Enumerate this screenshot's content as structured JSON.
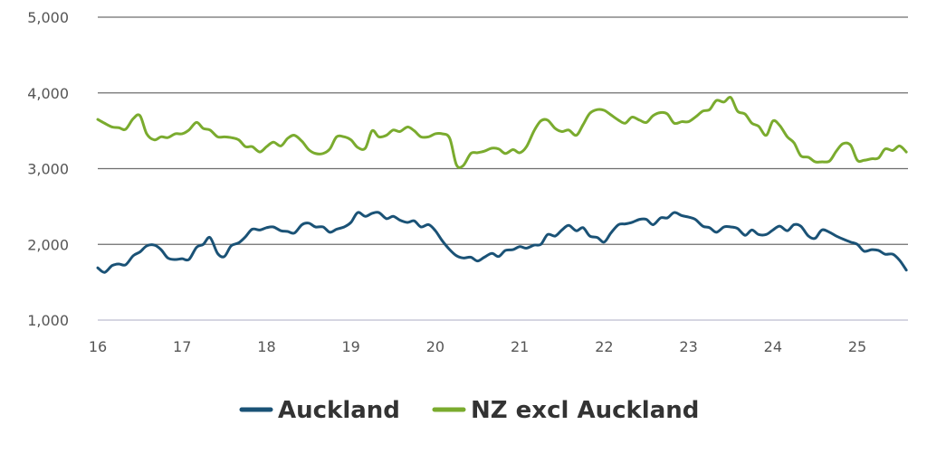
{
  "chart_data": {
    "type": "line",
    "title": "",
    "xlabel": "",
    "ylabel": "",
    "xlim": [
      16,
      25.6
    ],
    "ylim": [
      1000,
      5000
    ],
    "x_ticks": [
      "16",
      "17",
      "18",
      "19",
      "20",
      "21",
      "22",
      "23",
      "24",
      "25"
    ],
    "y_ticks": [
      "1,000",
      "2,000",
      "3,000",
      "4,000",
      "5,000"
    ],
    "grid": "horizontal",
    "legend_position": "bottom",
    "series": [
      {
        "name": "Auckland",
        "color": "#1a5276",
        "points": [
          [
            16.0,
            1690
          ],
          [
            16.08,
            1630
          ],
          [
            16.17,
            1720
          ],
          [
            16.25,
            1740
          ],
          [
            16.33,
            1730
          ],
          [
            16.42,
            1850
          ],
          [
            16.5,
            1900
          ],
          [
            16.58,
            1980
          ],
          [
            16.67,
            1990
          ],
          [
            16.75,
            1930
          ],
          [
            16.83,
            1820
          ],
          [
            16.92,
            1800
          ],
          [
            17.0,
            1810
          ],
          [
            17.08,
            1800
          ],
          [
            17.17,
            1960
          ],
          [
            17.25,
            2000
          ],
          [
            17.33,
            2090
          ],
          [
            17.42,
            1880
          ],
          [
            17.5,
            1840
          ],
          [
            17.58,
            1980
          ],
          [
            17.67,
            2020
          ],
          [
            17.75,
            2100
          ],
          [
            17.83,
            2200
          ],
          [
            17.92,
            2190
          ],
          [
            18.0,
            2220
          ],
          [
            18.08,
            2230
          ],
          [
            18.17,
            2180
          ],
          [
            18.25,
            2170
          ],
          [
            18.33,
            2150
          ],
          [
            18.42,
            2260
          ],
          [
            18.5,
            2280
          ],
          [
            18.58,
            2230
          ],
          [
            18.67,
            2230
          ],
          [
            18.75,
            2160
          ],
          [
            18.83,
            2200
          ],
          [
            18.92,
            2230
          ],
          [
            19.0,
            2290
          ],
          [
            19.08,
            2420
          ],
          [
            19.17,
            2370
          ],
          [
            19.25,
            2410
          ],
          [
            19.33,
            2420
          ],
          [
            19.42,
            2340
          ],
          [
            19.5,
            2370
          ],
          [
            19.58,
            2320
          ],
          [
            19.67,
            2290
          ],
          [
            19.75,
            2310
          ],
          [
            19.83,
            2230
          ],
          [
            19.92,
            2260
          ],
          [
            20.0,
            2180
          ],
          [
            20.08,
            2050
          ],
          [
            20.17,
            1930
          ],
          [
            20.25,
            1850
          ],
          [
            20.33,
            1820
          ],
          [
            20.42,
            1830
          ],
          [
            20.5,
            1780
          ],
          [
            20.58,
            1830
          ],
          [
            20.67,
            1880
          ],
          [
            20.75,
            1840
          ],
          [
            20.83,
            1920
          ],
          [
            20.92,
            1930
          ],
          [
            21.0,
            1970
          ],
          [
            21.08,
            1950
          ],
          [
            21.17,
            1990
          ],
          [
            21.25,
            2000
          ],
          [
            21.33,
            2130
          ],
          [
            21.42,
            2110
          ],
          [
            21.5,
            2190
          ],
          [
            21.58,
            2250
          ],
          [
            21.67,
            2180
          ],
          [
            21.75,
            2220
          ],
          [
            21.83,
            2110
          ],
          [
            21.92,
            2090
          ],
          [
            22.0,
            2030
          ],
          [
            22.08,
            2150
          ],
          [
            22.17,
            2260
          ],
          [
            22.25,
            2270
          ],
          [
            22.33,
            2290
          ],
          [
            22.42,
            2330
          ],
          [
            22.5,
            2330
          ],
          [
            22.58,
            2260
          ],
          [
            22.67,
            2350
          ],
          [
            22.75,
            2350
          ],
          [
            22.83,
            2420
          ],
          [
            22.92,
            2380
          ],
          [
            23.0,
            2360
          ],
          [
            23.08,
            2330
          ],
          [
            23.17,
            2240
          ],
          [
            23.25,
            2220
          ],
          [
            23.33,
            2160
          ],
          [
            23.42,
            2230
          ],
          [
            23.5,
            2230
          ],
          [
            23.58,
            2210
          ],
          [
            23.67,
            2120
          ],
          [
            23.75,
            2190
          ],
          [
            23.83,
            2130
          ],
          [
            23.92,
            2130
          ],
          [
            24.0,
            2190
          ],
          [
            24.08,
            2240
          ],
          [
            24.17,
            2180
          ],
          [
            24.25,
            2260
          ],
          [
            24.33,
            2240
          ],
          [
            24.42,
            2110
          ],
          [
            24.5,
            2080
          ],
          [
            24.58,
            2190
          ],
          [
            24.67,
            2160
          ],
          [
            24.75,
            2110
          ],
          [
            24.83,
            2070
          ],
          [
            24.92,
            2030
          ],
          [
            25.0,
            2000
          ],
          [
            25.08,
            1910
          ],
          [
            25.17,
            1930
          ],
          [
            25.25,
            1920
          ],
          [
            25.33,
            1870
          ],
          [
            25.42,
            1870
          ],
          [
            25.5,
            1790
          ],
          [
            25.58,
            1660
          ]
        ]
      },
      {
        "name": "NZ excl Auckland",
        "color": "#7aab2e",
        "points": [
          [
            16.0,
            3650
          ],
          [
            16.08,
            3600
          ],
          [
            16.17,
            3550
          ],
          [
            16.25,
            3540
          ],
          [
            16.33,
            3520
          ],
          [
            16.42,
            3660
          ],
          [
            16.5,
            3700
          ],
          [
            16.58,
            3460
          ],
          [
            16.67,
            3380
          ],
          [
            16.75,
            3420
          ],
          [
            16.83,
            3410
          ],
          [
            16.92,
            3460
          ],
          [
            17.0,
            3460
          ],
          [
            17.08,
            3510
          ],
          [
            17.17,
            3610
          ],
          [
            17.25,
            3530
          ],
          [
            17.33,
            3510
          ],
          [
            17.42,
            3420
          ],
          [
            17.5,
            3420
          ],
          [
            17.58,
            3410
          ],
          [
            17.67,
            3380
          ],
          [
            17.75,
            3290
          ],
          [
            17.83,
            3290
          ],
          [
            17.92,
            3220
          ],
          [
            18.0,
            3290
          ],
          [
            18.08,
            3350
          ],
          [
            18.17,
            3300
          ],
          [
            18.25,
            3400
          ],
          [
            18.33,
            3440
          ],
          [
            18.42,
            3360
          ],
          [
            18.5,
            3250
          ],
          [
            18.58,
            3200
          ],
          [
            18.67,
            3200
          ],
          [
            18.75,
            3260
          ],
          [
            18.83,
            3420
          ],
          [
            18.92,
            3420
          ],
          [
            19.0,
            3380
          ],
          [
            19.08,
            3280
          ],
          [
            19.17,
            3270
          ],
          [
            19.25,
            3500
          ],
          [
            19.33,
            3420
          ],
          [
            19.42,
            3440
          ],
          [
            19.5,
            3510
          ],
          [
            19.58,
            3490
          ],
          [
            19.67,
            3550
          ],
          [
            19.75,
            3500
          ],
          [
            19.83,
            3420
          ],
          [
            19.92,
            3420
          ],
          [
            20.0,
            3460
          ],
          [
            20.08,
            3460
          ],
          [
            20.17,
            3400
          ],
          [
            20.25,
            3050
          ],
          [
            20.33,
            3040
          ],
          [
            20.42,
            3200
          ],
          [
            20.5,
            3210
          ],
          [
            20.58,
            3230
          ],
          [
            20.67,
            3270
          ],
          [
            20.75,
            3260
          ],
          [
            20.83,
            3200
          ],
          [
            20.92,
            3250
          ],
          [
            21.0,
            3210
          ],
          [
            21.08,
            3290
          ],
          [
            21.17,
            3500
          ],
          [
            21.25,
            3630
          ],
          [
            21.33,
            3640
          ],
          [
            21.42,
            3530
          ],
          [
            21.5,
            3490
          ],
          [
            21.58,
            3510
          ],
          [
            21.67,
            3440
          ],
          [
            21.75,
            3580
          ],
          [
            21.83,
            3730
          ],
          [
            21.92,
            3780
          ],
          [
            22.0,
            3770
          ],
          [
            22.08,
            3710
          ],
          [
            22.17,
            3640
          ],
          [
            22.25,
            3600
          ],
          [
            22.33,
            3680
          ],
          [
            22.42,
            3640
          ],
          [
            22.5,
            3610
          ],
          [
            22.58,
            3700
          ],
          [
            22.67,
            3740
          ],
          [
            22.75,
            3720
          ],
          [
            22.83,
            3600
          ],
          [
            22.92,
            3620
          ],
          [
            23.0,
            3620
          ],
          [
            23.08,
            3680
          ],
          [
            23.17,
            3760
          ],
          [
            23.25,
            3780
          ],
          [
            23.33,
            3900
          ],
          [
            23.42,
            3880
          ],
          [
            23.5,
            3940
          ],
          [
            23.58,
            3760
          ],
          [
            23.67,
            3720
          ],
          [
            23.75,
            3600
          ],
          [
            23.83,
            3560
          ],
          [
            23.92,
            3440
          ],
          [
            24.0,
            3630
          ],
          [
            24.08,
            3570
          ],
          [
            24.17,
            3420
          ],
          [
            24.25,
            3340
          ],
          [
            24.33,
            3170
          ],
          [
            24.42,
            3150
          ],
          [
            24.5,
            3090
          ],
          [
            24.58,
            3090
          ],
          [
            24.67,
            3100
          ],
          [
            24.75,
            3230
          ],
          [
            24.83,
            3330
          ],
          [
            24.92,
            3310
          ],
          [
            25.0,
            3110
          ],
          [
            25.08,
            3110
          ],
          [
            25.17,
            3130
          ],
          [
            25.25,
            3140
          ],
          [
            25.33,
            3260
          ],
          [
            25.42,
            3240
          ],
          [
            25.5,
            3300
          ],
          [
            25.58,
            3220
          ]
        ]
      }
    ]
  }
}
